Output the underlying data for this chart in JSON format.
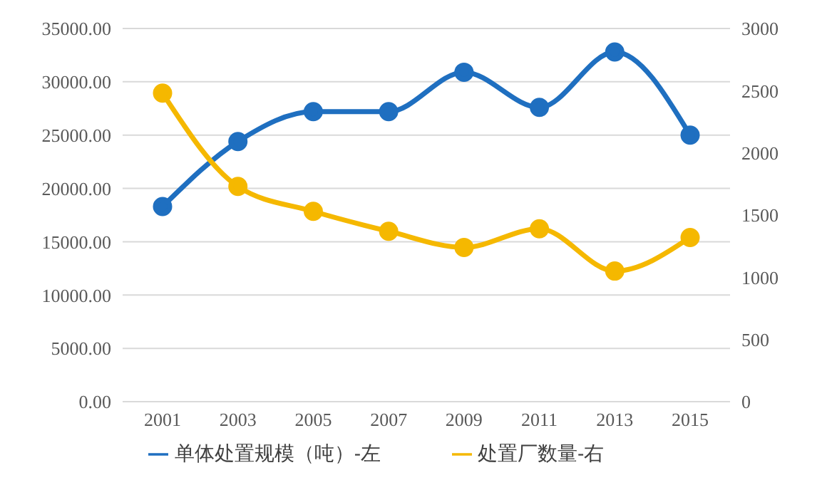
{
  "chart_data": {
    "type": "line",
    "categories": [
      "2001",
      "2003",
      "2005",
      "2007",
      "2009",
      "2011",
      "2013",
      "2015"
    ],
    "series": [
      {
        "name": "单体处置规模（吨）-左",
        "color": "#1f6fc0",
        "values": [
          18300,
          24400,
          27200,
          27200,
          30900,
          27600,
          32800,
          25000
        ]
      },
      {
        "name": "处置厂数量-右",
        "color": "#f5b800",
        "axis": "y2",
        "values": [
          2480,
          1730,
          1530,
          1370,
          1240,
          1390,
          1050,
          1320
        ]
      }
    ],
    "ylim": [
      0,
      35000
    ],
    "yticks": [
      {
        "value": 0,
        "label": "0.00"
      },
      {
        "value": 5000,
        "label": "5000.00"
      },
      {
        "value": 10000,
        "label": "10000.00"
      },
      {
        "value": 15000,
        "label": "15000.00"
      },
      {
        "value": 20000,
        "label": "20000.00"
      },
      {
        "value": 25000,
        "label": "25000.00"
      },
      {
        "value": 30000,
        "label": "30000.00"
      },
      {
        "value": 35000,
        "label": "35000.00"
      }
    ],
    "y2lim": [
      0,
      3000
    ],
    "y2ticks": [
      0,
      500,
      1000,
      1500,
      2000,
      2500,
      3000
    ],
    "grid": "y",
    "legend": "bottom",
    "marker": "circle",
    "line_style": "solid"
  }
}
